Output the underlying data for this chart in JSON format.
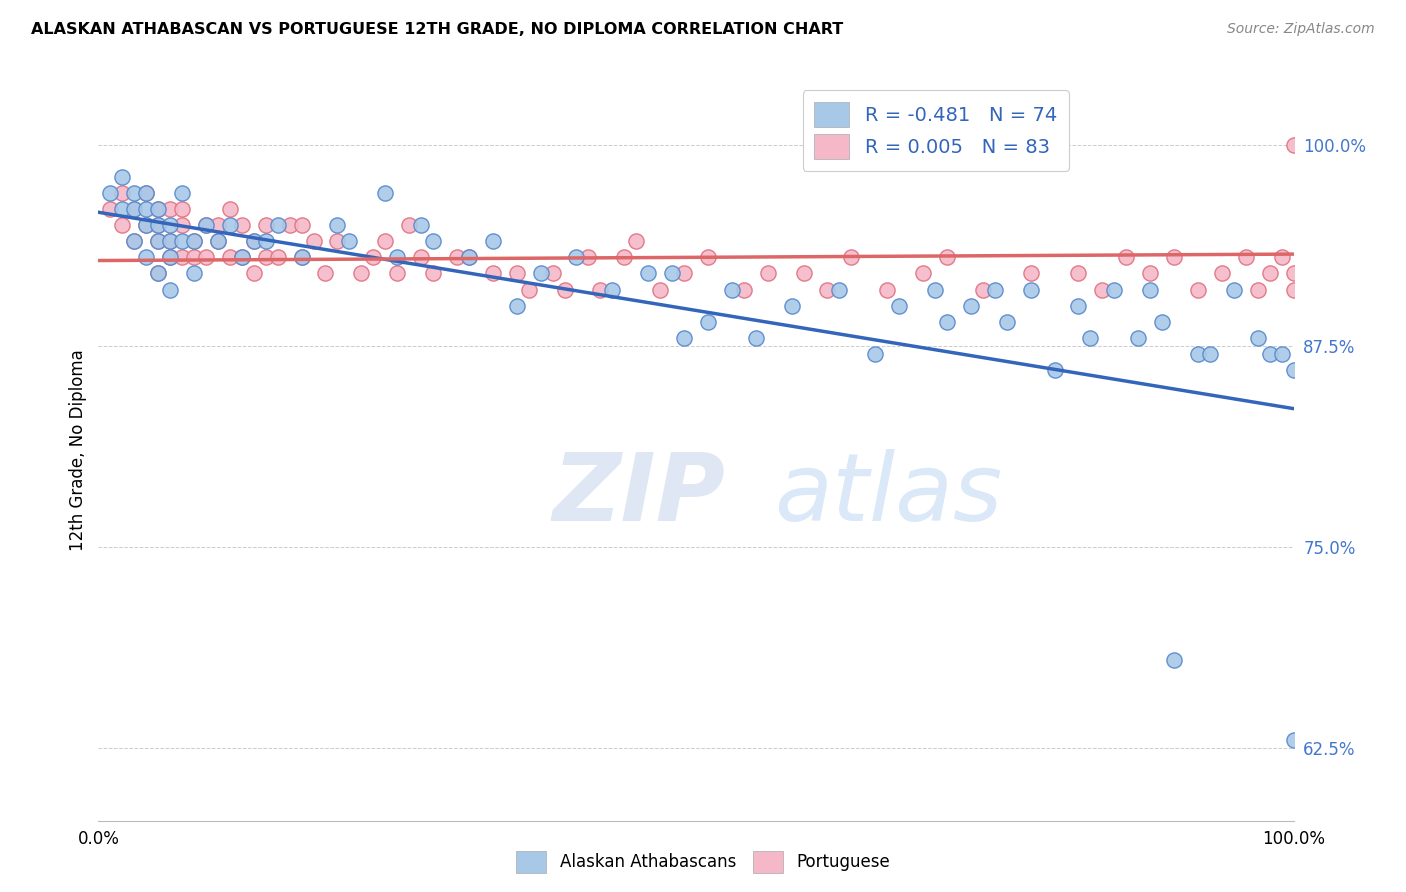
{
  "title": "ALASKAN ATHABASCAN VS PORTUGUESE 12TH GRADE, NO DIPLOMA CORRELATION CHART",
  "source": "Source: ZipAtlas.com",
  "ylabel": "12th Grade, No Diploma",
  "ytick_labels": [
    "100.0%",
    "87.5%",
    "75.0%",
    "62.5%"
  ],
  "ytick_values": [
    1.0,
    0.875,
    0.75,
    0.625
  ],
  "xlim": [
    0.0,
    1.0
  ],
  "ylim": [
    0.58,
    1.04
  ],
  "legend_label_blue": "R = -0.481   N = 74",
  "legend_label_pink": "R = 0.005   N = 83",
  "legend_bottom_blue": "Alaskan Athabascans",
  "legend_bottom_pink": "Portuguese",
  "blue_color": "#a8c8e8",
  "pink_color": "#f4b8c8",
  "blue_dark": "#5588cc",
  "pink_dark": "#e07080",
  "trendline_blue_color": "#3366bb",
  "trendline_pink_color": "#dd6666",
  "watermark_zip": "ZIP",
  "watermark_atlas": "atlas",
  "blue_scatter_x": [
    0.01,
    0.02,
    0.02,
    0.03,
    0.03,
    0.03,
    0.04,
    0.04,
    0.04,
    0.04,
    0.05,
    0.05,
    0.05,
    0.05,
    0.06,
    0.06,
    0.06,
    0.06,
    0.07,
    0.07,
    0.08,
    0.08,
    0.09,
    0.1,
    0.11,
    0.12,
    0.13,
    0.14,
    0.15,
    0.17,
    0.2,
    0.21,
    0.24,
    0.25,
    0.27,
    0.28,
    0.31,
    0.33,
    0.35,
    0.37,
    0.4,
    0.43,
    0.46,
    0.48,
    0.49,
    0.51,
    0.53,
    0.55,
    0.58,
    0.62,
    0.65,
    0.67,
    0.7,
    0.71,
    0.73,
    0.75,
    0.76,
    0.78,
    0.8,
    0.82,
    0.83,
    0.85,
    0.87,
    0.88,
    0.89,
    0.9,
    0.92,
    0.93,
    0.95,
    0.97,
    0.98,
    0.99,
    1.0,
    1.0
  ],
  "blue_scatter_y": [
    0.97,
    0.96,
    0.98,
    0.97,
    0.96,
    0.94,
    0.97,
    0.96,
    0.95,
    0.93,
    0.96,
    0.95,
    0.94,
    0.92,
    0.95,
    0.94,
    0.93,
    0.91,
    0.97,
    0.94,
    0.94,
    0.92,
    0.95,
    0.94,
    0.95,
    0.93,
    0.94,
    0.94,
    0.95,
    0.93,
    0.95,
    0.94,
    0.97,
    0.93,
    0.95,
    0.94,
    0.93,
    0.94,
    0.9,
    0.92,
    0.93,
    0.91,
    0.92,
    0.92,
    0.88,
    0.89,
    0.91,
    0.88,
    0.9,
    0.91,
    0.87,
    0.9,
    0.91,
    0.89,
    0.9,
    0.91,
    0.89,
    0.91,
    0.86,
    0.9,
    0.88,
    0.91,
    0.88,
    0.91,
    0.89,
    0.68,
    0.87,
    0.87,
    0.91,
    0.88,
    0.87,
    0.87,
    0.63,
    0.86
  ],
  "pink_scatter_x": [
    0.01,
    0.02,
    0.02,
    0.03,
    0.03,
    0.04,
    0.04,
    0.05,
    0.05,
    0.05,
    0.05,
    0.06,
    0.06,
    0.06,
    0.07,
    0.07,
    0.07,
    0.08,
    0.08,
    0.09,
    0.09,
    0.1,
    0.1,
    0.11,
    0.11,
    0.12,
    0.12,
    0.13,
    0.13,
    0.14,
    0.14,
    0.15,
    0.16,
    0.17,
    0.17,
    0.18,
    0.19,
    0.2,
    0.22,
    0.23,
    0.24,
    0.25,
    0.26,
    0.27,
    0.28,
    0.3,
    0.31,
    0.33,
    0.35,
    0.36,
    0.38,
    0.39,
    0.41,
    0.42,
    0.44,
    0.45,
    0.47,
    0.49,
    0.51,
    0.54,
    0.56,
    0.59,
    0.61,
    0.63,
    0.66,
    0.69,
    0.71,
    0.74,
    0.78,
    0.82,
    0.84,
    0.86,
    0.88,
    0.9,
    0.92,
    0.94,
    0.96,
    0.97,
    0.98,
    0.99,
    1.0,
    1.0,
    1.0
  ],
  "pink_scatter_y": [
    0.96,
    0.97,
    0.95,
    0.96,
    0.94,
    0.97,
    0.95,
    0.96,
    0.95,
    0.94,
    0.92,
    0.96,
    0.94,
    0.93,
    0.96,
    0.95,
    0.93,
    0.94,
    0.93,
    0.95,
    0.93,
    0.95,
    0.94,
    0.96,
    0.93,
    0.95,
    0.93,
    0.94,
    0.92,
    0.95,
    0.93,
    0.93,
    0.95,
    0.95,
    0.93,
    0.94,
    0.92,
    0.94,
    0.92,
    0.93,
    0.94,
    0.92,
    0.95,
    0.93,
    0.92,
    0.93,
    0.93,
    0.92,
    0.92,
    0.91,
    0.92,
    0.91,
    0.93,
    0.91,
    0.93,
    0.94,
    0.91,
    0.92,
    0.93,
    0.91,
    0.92,
    0.92,
    0.91,
    0.93,
    0.91,
    0.92,
    0.93,
    0.91,
    0.92,
    0.92,
    0.91,
    0.93,
    0.92,
    0.93,
    0.91,
    0.92,
    0.93,
    0.91,
    0.92,
    0.93,
    0.92,
    0.91,
    1.0
  ],
  "blue_trend_x": [
    0.0,
    1.0
  ],
  "blue_trend_y": [
    0.958,
    0.836
  ],
  "pink_trend_x": [
    0.0,
    1.0
  ],
  "pink_trend_y": [
    0.928,
    0.932
  ]
}
